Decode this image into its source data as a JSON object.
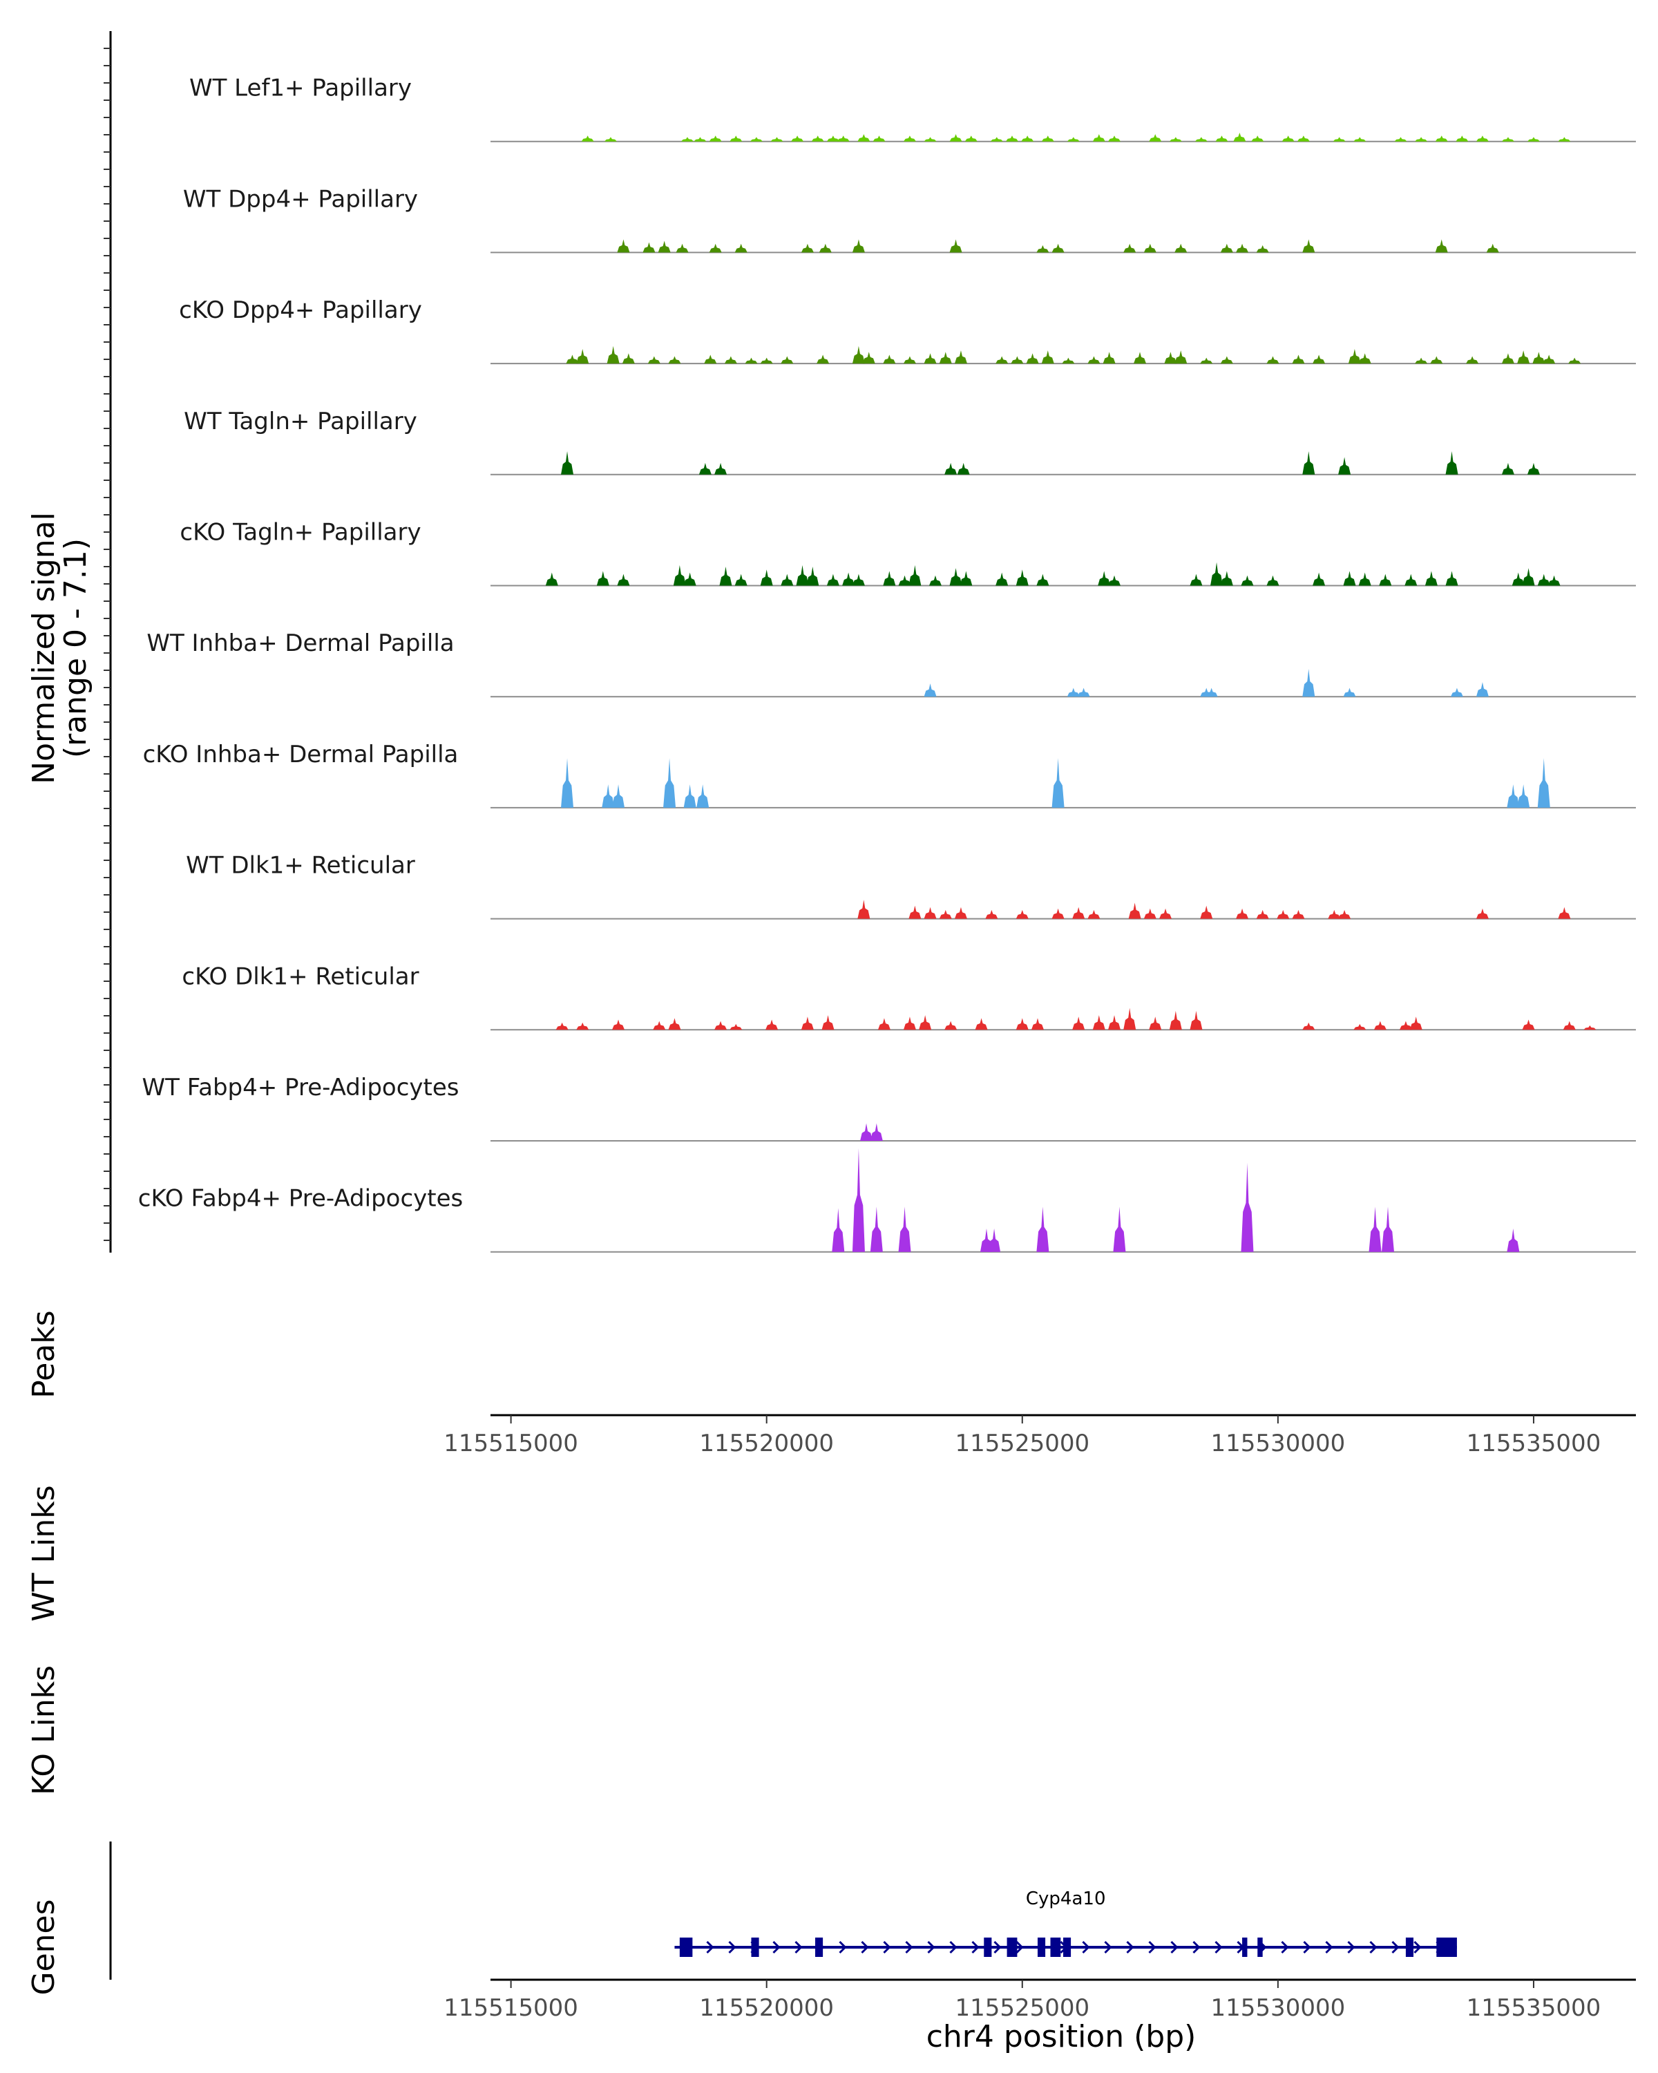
{
  "chart_data": {
    "type": "area",
    "region": {
      "chrom": "chr4",
      "start": 115514600,
      "end": 115537000
    },
    "y_axis_title": [
      "Normalized signal",
      "(range 0 - 7.1)"
    ],
    "y_range": [
      0,
      7.1
    ],
    "tracks": [
      {
        "name": "WT Lef1+ Papillary",
        "color": "#66CC00",
        "peaks": [
          [
            115516500,
            0.4
          ],
          [
            115516950,
            0.3
          ],
          [
            115518450,
            0.3
          ],
          [
            115518700,
            0.3
          ],
          [
            115519000,
            0.4
          ],
          [
            115519400,
            0.4
          ],
          [
            115519800,
            0.3
          ],
          [
            115520200,
            0.3
          ],
          [
            115520600,
            0.4
          ],
          [
            115521000,
            0.4
          ],
          [
            115521300,
            0.4
          ],
          [
            115521500,
            0.4
          ],
          [
            115521900,
            0.5
          ],
          [
            115522200,
            0.4
          ],
          [
            115522800,
            0.4
          ],
          [
            115523200,
            0.3
          ],
          [
            115523700,
            0.5
          ],
          [
            115524000,
            0.4
          ],
          [
            115524500,
            0.3
          ],
          [
            115524800,
            0.4
          ],
          [
            115525100,
            0.4
          ],
          [
            115525500,
            0.4
          ],
          [
            115526000,
            0.3
          ],
          [
            115526500,
            0.5
          ],
          [
            115526800,
            0.4
          ],
          [
            115527600,
            0.5
          ],
          [
            115528000,
            0.3
          ],
          [
            115528500,
            0.3
          ],
          [
            115528900,
            0.4
          ],
          [
            115529250,
            0.6
          ],
          [
            115529600,
            0.4
          ],
          [
            115530200,
            0.4
          ],
          [
            115530500,
            0.4
          ],
          [
            115531200,
            0.3
          ],
          [
            115531600,
            0.3
          ],
          [
            115532400,
            0.3
          ],
          [
            115532800,
            0.3
          ],
          [
            115533200,
            0.4
          ],
          [
            115533600,
            0.4
          ],
          [
            115534000,
            0.4
          ],
          [
            115534500,
            0.3
          ],
          [
            115535000,
            0.3
          ],
          [
            115535600,
            0.3
          ]
        ]
      },
      {
        "name": "WT Dpp4+ Papillary",
        "color": "#4A8F00",
        "peaks": [
          [
            115517200,
            0.9
          ],
          [
            115517700,
            0.7
          ],
          [
            115518000,
            0.8
          ],
          [
            115518350,
            0.6
          ],
          [
            115519000,
            0.6
          ],
          [
            115519500,
            0.6
          ],
          [
            115520800,
            0.6
          ],
          [
            115521150,
            0.6
          ],
          [
            115521800,
            0.9
          ],
          [
            115523700,
            0.9
          ],
          [
            115525400,
            0.5
          ],
          [
            115525700,
            0.6
          ],
          [
            115527100,
            0.6
          ],
          [
            115527500,
            0.6
          ],
          [
            115528100,
            0.6
          ],
          [
            115529000,
            0.6
          ],
          [
            115529300,
            0.6
          ],
          [
            115529700,
            0.5
          ],
          [
            115530600,
            0.9
          ],
          [
            115533200,
            0.9
          ],
          [
            115534200,
            0.6
          ]
        ]
      },
      {
        "name": "cKO Dpp4+ Papillary",
        "color": "#4A8F00",
        "peaks": [
          [
            115516200,
            0.6
          ],
          [
            115516400,
            1.0
          ],
          [
            115517000,
            1.2
          ],
          [
            115517300,
            0.7
          ],
          [
            115517800,
            0.5
          ],
          [
            115518200,
            0.5
          ],
          [
            115518900,
            0.6
          ],
          [
            115519300,
            0.5
          ],
          [
            115519700,
            0.4
          ],
          [
            115520000,
            0.4
          ],
          [
            115520400,
            0.5
          ],
          [
            115521100,
            0.6
          ],
          [
            115521800,
            1.2
          ],
          [
            115522000,
            0.8
          ],
          [
            115522400,
            0.6
          ],
          [
            115522800,
            0.5
          ],
          [
            115523200,
            0.7
          ],
          [
            115523500,
            0.8
          ],
          [
            115523800,
            0.9
          ],
          [
            115524600,
            0.5
          ],
          [
            115524900,
            0.5
          ],
          [
            115525200,
            0.7
          ],
          [
            115525500,
            0.9
          ],
          [
            115525900,
            0.4
          ],
          [
            115526400,
            0.5
          ],
          [
            115526700,
            0.8
          ],
          [
            115527300,
            0.8
          ],
          [
            115527900,
            0.8
          ],
          [
            115528100,
            0.9
          ],
          [
            115528600,
            0.4
          ],
          [
            115529000,
            0.5
          ],
          [
            115529900,
            0.5
          ],
          [
            115530400,
            0.6
          ],
          [
            115530800,
            0.6
          ],
          [
            115531500,
            1.0
          ],
          [
            115531700,
            0.7
          ],
          [
            115532800,
            0.4
          ],
          [
            115533100,
            0.5
          ],
          [
            115533800,
            0.5
          ],
          [
            115534500,
            0.7
          ],
          [
            115534800,
            0.9
          ],
          [
            115535100,
            0.8
          ],
          [
            115535300,
            0.6
          ],
          [
            115535800,
            0.4
          ]
        ]
      },
      {
        "name": "WT Tagln+ Papillary",
        "color": "#006400",
        "peaks": [
          [
            115516100,
            1.6
          ],
          [
            115518800,
            0.8
          ],
          [
            115519100,
            0.8
          ],
          [
            115523600,
            0.8
          ],
          [
            115523850,
            0.8
          ],
          [
            115530600,
            1.6
          ],
          [
            115531300,
            1.2
          ],
          [
            115533400,
            1.6
          ],
          [
            115534500,
            0.8
          ],
          [
            115535000,
            0.8
          ]
        ]
      },
      {
        "name": "cKO Tagln+ Papillary",
        "color": "#006400",
        "peaks": [
          [
            115515800,
            0.9
          ],
          [
            115516800,
            1.0
          ],
          [
            115517200,
            0.8
          ],
          [
            115518300,
            1.4
          ],
          [
            115518500,
            0.9
          ],
          [
            115519200,
            1.3
          ],
          [
            115519500,
            0.8
          ],
          [
            115520000,
            1.1
          ],
          [
            115520400,
            0.8
          ],
          [
            115520700,
            1.4
          ],
          [
            115520900,
            1.3
          ],
          [
            115521300,
            0.8
          ],
          [
            115521600,
            0.9
          ],
          [
            115521800,
            0.8
          ],
          [
            115522400,
            1.0
          ],
          [
            115522700,
            0.7
          ],
          [
            115522900,
            1.4
          ],
          [
            115523300,
            0.7
          ],
          [
            115523700,
            1.2
          ],
          [
            115523900,
            1.0
          ],
          [
            115524600,
            0.9
          ],
          [
            115525000,
            1.1
          ],
          [
            115525400,
            0.8
          ],
          [
            115526600,
            1.0
          ],
          [
            115526800,
            0.7
          ],
          [
            115528400,
            0.8
          ],
          [
            115528800,
            1.6
          ],
          [
            115529000,
            1.0
          ],
          [
            115529400,
            0.7
          ],
          [
            115529900,
            0.7
          ],
          [
            115530800,
            0.9
          ],
          [
            115531400,
            1.0
          ],
          [
            115531700,
            0.9
          ],
          [
            115532100,
            0.8
          ],
          [
            115532600,
            0.8
          ],
          [
            115533000,
            1.0
          ],
          [
            115533400,
            1.0
          ],
          [
            115534700,
            0.9
          ],
          [
            115534900,
            1.2
          ],
          [
            115535200,
            0.8
          ],
          [
            115535400,
            0.7
          ]
        ]
      },
      {
        "name": "WT Inhba+ Dermal Papilla",
        "color": "#56A8E6",
        "peaks": [
          [
            115523200,
            0.9
          ],
          [
            115526000,
            0.6
          ],
          [
            115526200,
            0.6
          ],
          [
            115528600,
            0.6
          ],
          [
            115528700,
            0.6
          ],
          [
            115530600,
            1.9
          ],
          [
            115531400,
            0.6
          ],
          [
            115533500,
            0.6
          ],
          [
            115534000,
            1.0
          ]
        ]
      },
      {
        "name": "cKO Inhba+ Dermal Papilla",
        "color": "#56A8E6",
        "peaks": [
          [
            115516100,
            3.4
          ],
          [
            115516900,
            1.6
          ],
          [
            115517100,
            1.6
          ],
          [
            115518100,
            3.4
          ],
          [
            115518500,
            1.6
          ],
          [
            115518750,
            1.6
          ],
          [
            115525700,
            3.4
          ],
          [
            115534600,
            1.6
          ],
          [
            115534800,
            1.6
          ],
          [
            115535200,
            3.4
          ]
        ]
      },
      {
        "name": "WT Dlk1+ Reticular",
        "color": "#E62E2E",
        "peaks": [
          [
            115521900,
            1.3
          ],
          [
            115522900,
            0.9
          ],
          [
            115523200,
            0.8
          ],
          [
            115523500,
            0.6
          ],
          [
            115523800,
            0.8
          ],
          [
            115524400,
            0.6
          ],
          [
            115525000,
            0.6
          ],
          [
            115525700,
            0.7
          ],
          [
            115526100,
            0.8
          ],
          [
            115526400,
            0.6
          ],
          [
            115527200,
            1.1
          ],
          [
            115527500,
            0.7
          ],
          [
            115527800,
            0.7
          ],
          [
            115528600,
            0.9
          ],
          [
            115529300,
            0.7
          ],
          [
            115529700,
            0.6
          ],
          [
            115530100,
            0.6
          ],
          [
            115530400,
            0.6
          ],
          [
            115531100,
            0.6
          ],
          [
            115531300,
            0.6
          ],
          [
            115534000,
            0.7
          ],
          [
            115535600,
            0.8
          ]
        ]
      },
      {
        "name": "cKO Dlk1+ Reticular",
        "color": "#E62E2E",
        "peaks": [
          [
            115516000,
            0.5
          ],
          [
            115516400,
            0.5
          ],
          [
            115517100,
            0.7
          ],
          [
            115517900,
            0.6
          ],
          [
            115518200,
            0.8
          ],
          [
            115519100,
            0.6
          ],
          [
            115519400,
            0.4
          ],
          [
            115520100,
            0.7
          ],
          [
            115520800,
            0.9
          ],
          [
            115521200,
            1.0
          ],
          [
            115522300,
            0.8
          ],
          [
            115522800,
            0.9
          ],
          [
            115523100,
            1.0
          ],
          [
            115523600,
            0.6
          ],
          [
            115524200,
            0.8
          ],
          [
            115525000,
            0.8
          ],
          [
            115525300,
            0.8
          ],
          [
            115526100,
            0.9
          ],
          [
            115526500,
            1.0
          ],
          [
            115526800,
            1.0
          ],
          [
            115527100,
            1.5
          ],
          [
            115527600,
            0.9
          ],
          [
            115528000,
            1.3
          ],
          [
            115528400,
            1.3
          ],
          [
            115530600,
            0.5
          ],
          [
            115531600,
            0.4
          ],
          [
            115532000,
            0.6
          ],
          [
            115532500,
            0.6
          ],
          [
            115532700,
            0.9
          ],
          [
            115534900,
            0.7
          ],
          [
            115535700,
            0.6
          ],
          [
            115536100,
            0.3
          ]
        ]
      },
      {
        "name": "WT Fabp4+ Pre-Adipocytes",
        "color": "#A733E6",
        "peaks": [
          [
            115521950,
            1.2
          ],
          [
            115522150,
            1.2
          ]
        ]
      },
      {
        "name": "cKO Fabp4+ Pre-Adipocytes",
        "color": "#A733E6",
        "peaks": [
          [
            115521400,
            3.0
          ],
          [
            115521800,
            7.1
          ],
          [
            115522150,
            3.1
          ],
          [
            115522700,
            3.1
          ],
          [
            115524300,
            1.6
          ],
          [
            115524450,
            1.6
          ],
          [
            115525400,
            3.1
          ],
          [
            115526900,
            3.1
          ],
          [
            115529400,
            6.1
          ],
          [
            115531900,
            3.1
          ],
          [
            115532150,
            3.1
          ],
          [
            115534600,
            1.6
          ]
        ]
      }
    ],
    "peaks_track_title": "Peaks",
    "x_ticks": [
      115515000,
      115520000,
      115525000,
      115530000,
      115535000
    ],
    "x_tick_labels": [
      "115515000",
      "115520000",
      "115525000",
      "115530000",
      "115535000"
    ],
    "wt_links_title": "WT Links",
    "ko_links_title": "KO Links",
    "genes_title": "Genes",
    "gene": {
      "name": "Cyp4a10",
      "start": 115518200,
      "end": 115533500,
      "strand": "+",
      "exons": [
        [
          115518300,
          115518550
        ],
        [
          115519700,
          115519850
        ],
        [
          115520950,
          115521100
        ],
        [
          115524250,
          115524400
        ],
        [
          115524700,
          115524900
        ],
        [
          115525300,
          115525450
        ],
        [
          115525550,
          115525750
        ],
        [
          115525800,
          115525950
        ],
        [
          115529300,
          115529400
        ],
        [
          115529600,
          115529700
        ],
        [
          115532500,
          115532650
        ],
        [
          115533100,
          115533500
        ]
      ]
    },
    "x_axis_title": "chr4 position (bp)"
  }
}
